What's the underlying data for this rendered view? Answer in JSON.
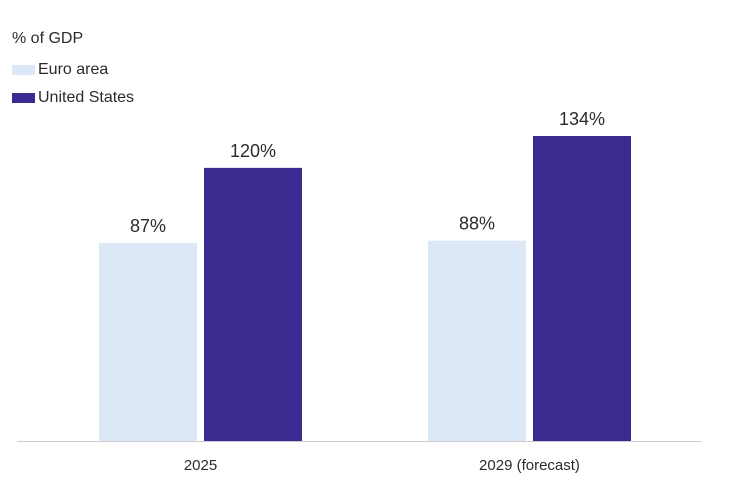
{
  "chart_data": {
    "type": "bar",
    "unit_label": "% of GDP",
    "categories": [
      "2025",
      "2029 (forecast)"
    ],
    "series": [
      {
        "name": "Euro area",
        "values": [
          87,
          88
        ],
        "labels": [
          "87%",
          "88%"
        ],
        "color": "#dce8f6"
      },
      {
        "name": "United States",
        "values": [
          120,
          134
        ],
        "labels": [
          "120%",
          "134%"
        ],
        "color": "#3c2a91"
      }
    ],
    "ylim": [
      0,
      134
    ],
    "grid": false,
    "legend_position": "top-left",
    "baseline_color": "#cccccc"
  }
}
